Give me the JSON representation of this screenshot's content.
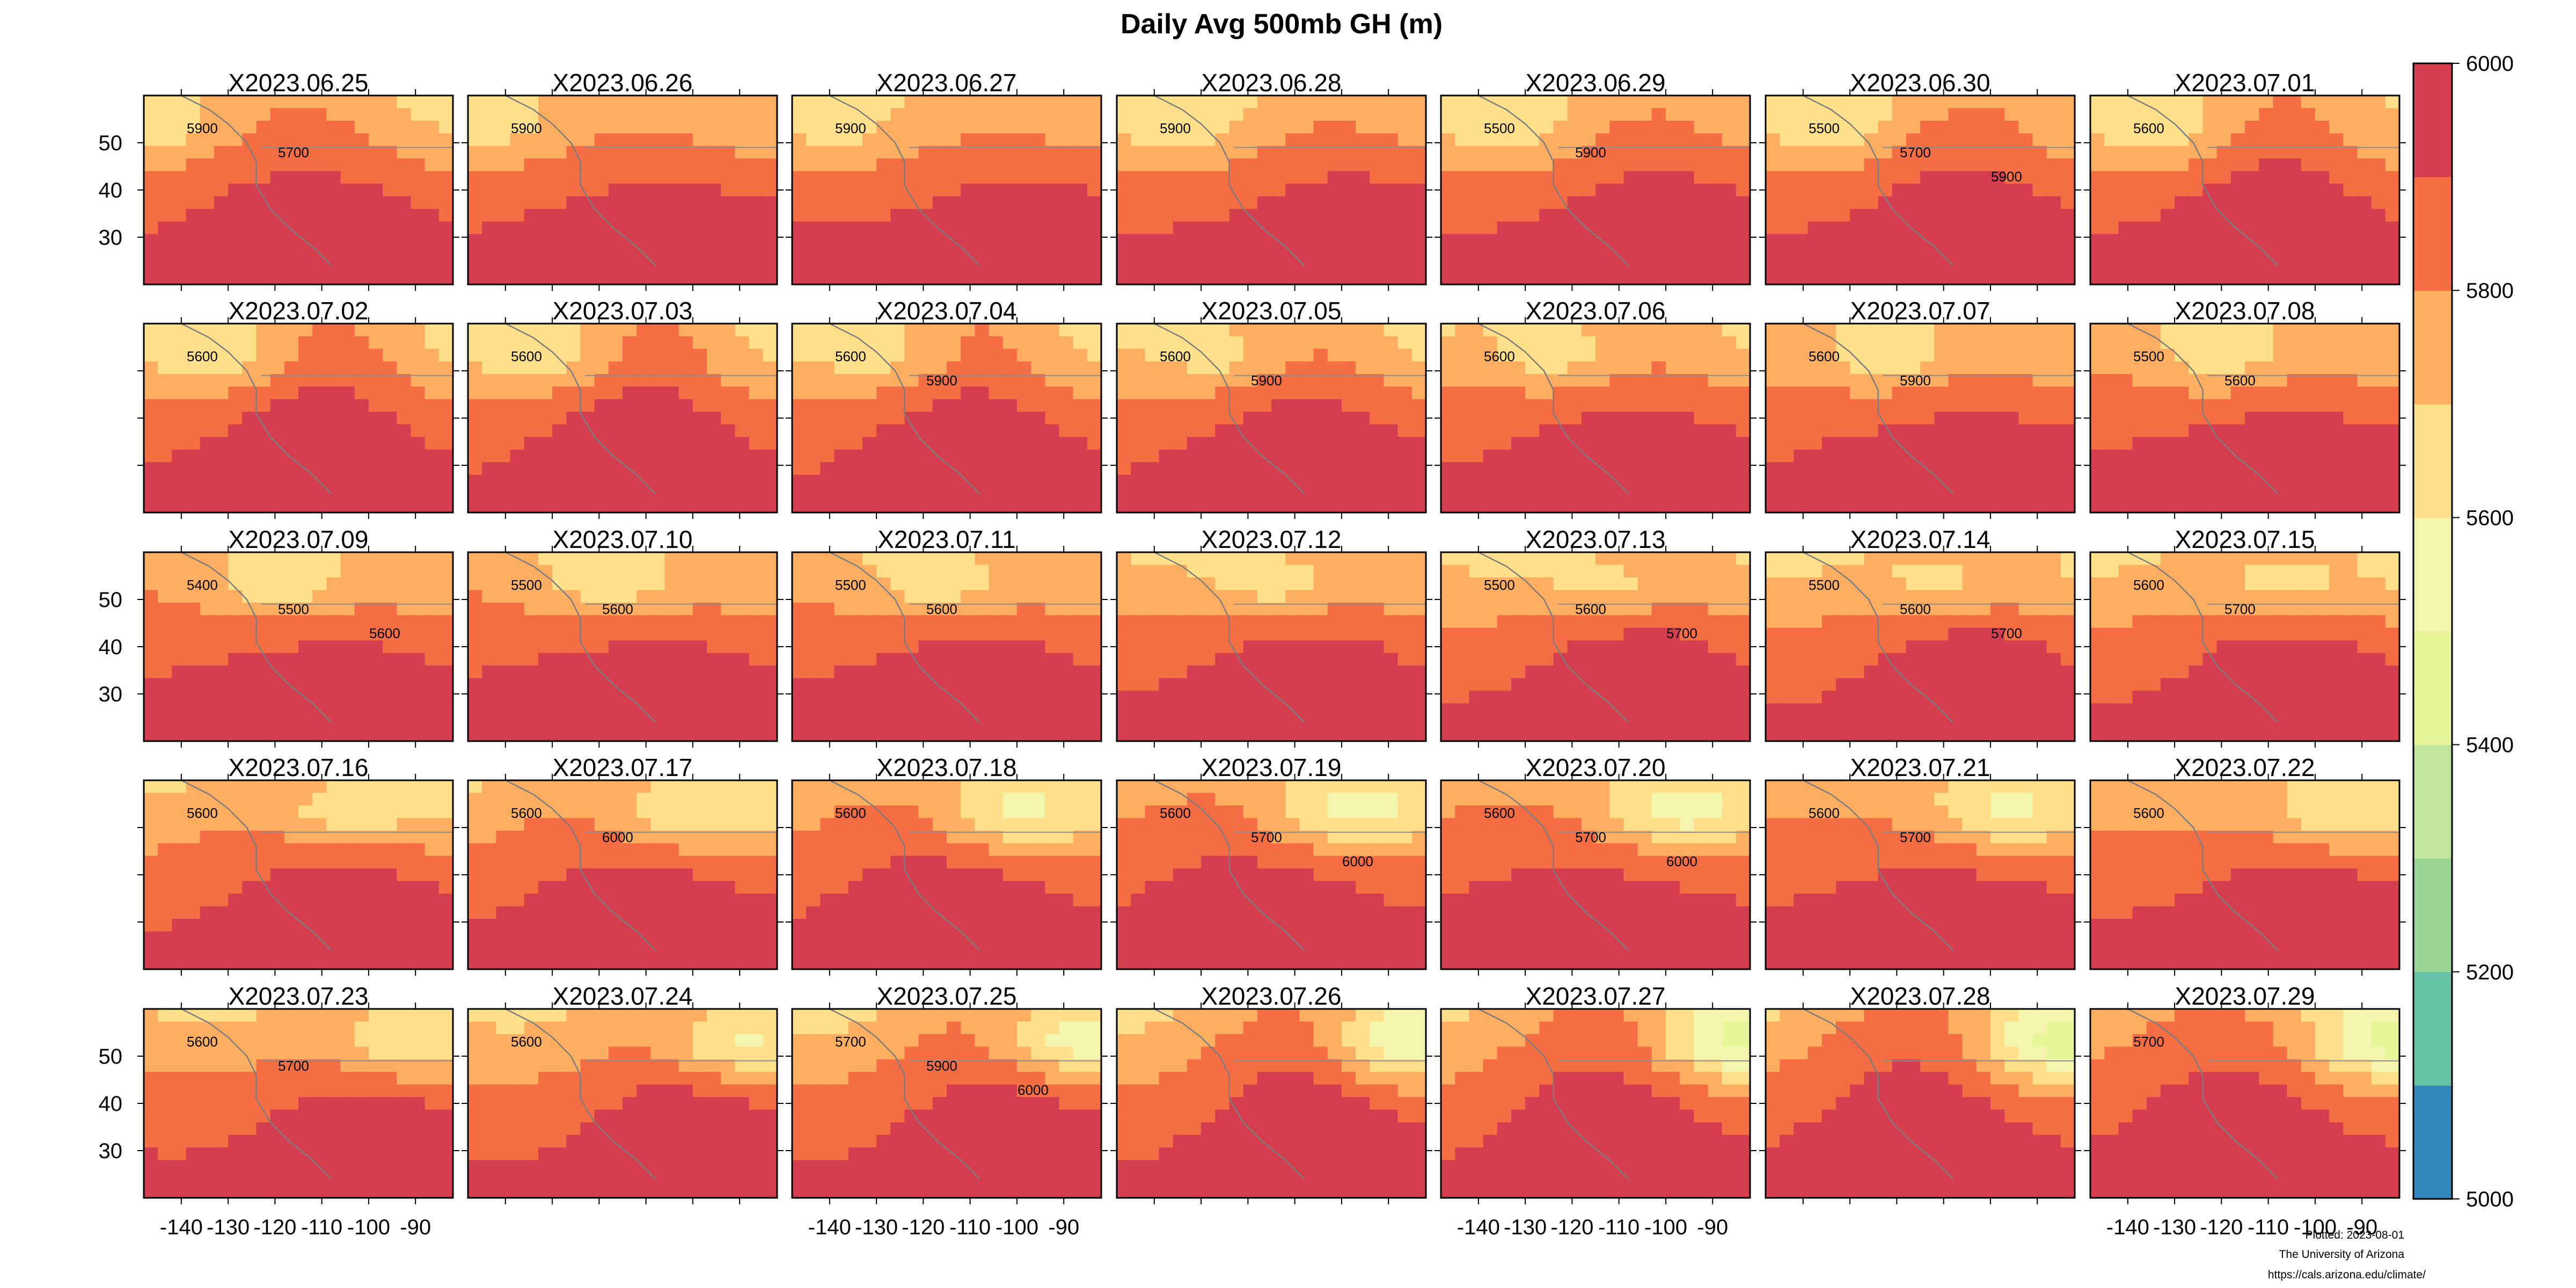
{
  "title": "Daily Avg 500mb GH (m)",
  "footer": {
    "plotted": "Plotted: 2023-08-01",
    "org": "The University of Arizona",
    "url": "https://cals.arizona.edu/climate/"
  },
  "colorbar": {
    "min": 5000,
    "max": 6000,
    "tick_labels": [
      "5000",
      "5200",
      "5400",
      "5600",
      "5800",
      "6000"
    ],
    "colors": [
      "#3288bd",
      "#66c2a5",
      "#99d594",
      "#c2e59c",
      "#e6f598",
      "#f4f5ad",
      "#fee08b",
      "#fdae61",
      "#f46d43",
      "#d53e4f"
    ]
  },
  "lon_ticks": [
    "-140",
    "-130",
    "-120",
    "-110",
    "-100",
    "-90"
  ],
  "lat_ticks": [
    "50",
    "40",
    "30"
  ],
  "chart_data": {
    "type": "heatmap",
    "variable": "Daily Avg 500mb GH (m)",
    "layout": {
      "rows": 5,
      "cols": 7
    },
    "xlim": [
      -148,
      -82
    ],
    "ylim": [
      20,
      60
    ],
    "x_ticks": [
      -140,
      -130,
      -120,
      -110,
      -100,
      -90
    ],
    "y_ticks": [
      30,
      40,
      50
    ],
    "panels": [
      {
        "label": "X2023.06.25",
        "contour_labels": [
          "5900",
          "5700"
        ]
      },
      {
        "label": "X2023.06.26",
        "contour_labels": [
          "5900"
        ]
      },
      {
        "label": "X2023.06.27",
        "contour_labels": [
          "5900"
        ]
      },
      {
        "label": "X2023.06.28",
        "contour_labels": [
          "5900"
        ]
      },
      {
        "label": "X2023.06.29",
        "contour_labels": [
          "5500",
          "5900"
        ]
      },
      {
        "label": "X2023.06.30",
        "contour_labels": [
          "5500",
          "5700",
          "5900"
        ]
      },
      {
        "label": "X2023.07.01",
        "contour_labels": [
          "5600"
        ]
      },
      {
        "label": "X2023.07.02",
        "contour_labels": [
          "5600"
        ]
      },
      {
        "label": "X2023.07.03",
        "contour_labels": [
          "5600"
        ]
      },
      {
        "label": "X2023.07.04",
        "contour_labels": [
          "5600",
          "5900"
        ]
      },
      {
        "label": "X2023.07.05",
        "contour_labels": [
          "5600",
          "5900"
        ]
      },
      {
        "label": "X2023.07.06",
        "contour_labels": [
          "5600"
        ]
      },
      {
        "label": "X2023.07.07",
        "contour_labels": [
          "5600",
          "5900"
        ]
      },
      {
        "label": "X2023.07.08",
        "contour_labels": [
          "5500",
          "5600"
        ]
      },
      {
        "label": "X2023.07.09",
        "contour_labels": [
          "5400",
          "5500",
          "5600"
        ]
      },
      {
        "label": "X2023.07.10",
        "contour_labels": [
          "5500",
          "5600"
        ]
      },
      {
        "label": "X2023.07.11",
        "contour_labels": [
          "5500",
          "5600"
        ]
      },
      {
        "label": "X2023.07.12",
        "contour_labels": []
      },
      {
        "label": "X2023.07.13",
        "contour_labels": [
          "5500",
          "5600",
          "5700"
        ]
      },
      {
        "label": "X2023.07.14",
        "contour_labels": [
          "5500",
          "5600",
          "5700"
        ]
      },
      {
        "label": "X2023.07.15",
        "contour_labels": [
          "5600",
          "5700"
        ]
      },
      {
        "label": "X2023.07.16",
        "contour_labels": [
          "5600"
        ]
      },
      {
        "label": "X2023.07.17",
        "contour_labels": [
          "5600",
          "6000"
        ]
      },
      {
        "label": "X2023.07.18",
        "contour_labels": [
          "5600"
        ]
      },
      {
        "label": "X2023.07.19",
        "contour_labels": [
          "5600",
          "5700",
          "6000"
        ]
      },
      {
        "label": "X2023.07.20",
        "contour_labels": [
          "5600",
          "5700",
          "6000"
        ]
      },
      {
        "label": "X2023.07.21",
        "contour_labels": [
          "5600",
          "5700"
        ]
      },
      {
        "label": "X2023.07.22",
        "contour_labels": [
          "5600"
        ]
      },
      {
        "label": "X2023.07.23",
        "contour_labels": [
          "5600",
          "5700"
        ]
      },
      {
        "label": "X2023.07.24",
        "contour_labels": [
          "5600"
        ]
      },
      {
        "label": "X2023.07.25",
        "contour_labels": [
          "5700",
          "5900",
          "6000"
        ]
      },
      {
        "label": "X2023.07.26",
        "contour_labels": []
      },
      {
        "label": "X2023.07.27",
        "contour_labels": []
      },
      {
        "label": "X2023.07.28",
        "contour_labels": []
      },
      {
        "label": "X2023.07.29",
        "contour_labels": [
          "5700"
        ]
      }
    ]
  }
}
